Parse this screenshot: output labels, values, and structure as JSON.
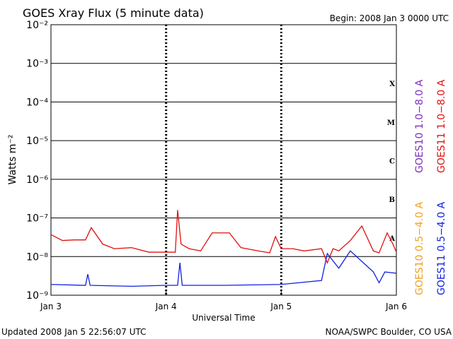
{
  "chart_data": {
    "type": "line",
    "title": "GOES Xray Flux (5 minute data)",
    "subtitle": "Begin:  2008 Jan 3 0000 UTC",
    "y_label": "Watts m⁻²",
    "x_label": "Universal Time",
    "footer_left": "Updated 2008 Jan  5 22:56:07 UTC",
    "footer_right": "NOAA/SWPC Boulder, CO USA",
    "log_y": true,
    "grid": true,
    "ylim": [
      1e-09,
      0.01
    ],
    "yticks": [
      {
        "value": 1e-09,
        "label": "10⁻⁹"
      },
      {
        "value": 1e-08,
        "label": "10⁻⁸"
      },
      {
        "value": 1e-07,
        "label": "10⁻⁷"
      },
      {
        "value": 1e-06,
        "label": "10⁻⁶"
      },
      {
        "value": 1e-05,
        "label": "10⁻⁵"
      },
      {
        "value": 0.0001,
        "label": "10⁻⁴"
      },
      {
        "value": 0.001,
        "label": "10⁻³"
      },
      {
        "value": 0.01,
        "label": "10⁻²"
      }
    ],
    "xlim": [
      0,
      3
    ],
    "xticks": [
      {
        "value": 0,
        "label": "Jan 3"
      },
      {
        "value": 1,
        "label": "Jan 4"
      },
      {
        "value": 2,
        "label": "Jan 5"
      },
      {
        "value": 3,
        "label": "Jan 6"
      }
    ],
    "class_labels": [
      "A",
      "B",
      "C",
      "M",
      "X"
    ],
    "series": [
      {
        "name": "GOES10 1.0−8.0 A",
        "color": "#7b2fbf"
      },
      {
        "name": "GOES11 1.0−8.0 A",
        "color": "#e01010",
        "x": [
          0,
          0.1,
          0.2,
          0.3,
          0.35,
          0.45,
          0.55,
          0.7,
          0.85,
          1.0,
          1.08,
          1.1,
          1.13,
          1.2,
          1.3,
          1.4,
          1.55,
          1.65,
          1.8,
          1.9,
          1.95,
          2.0,
          2.1,
          2.2,
          2.35,
          2.4,
          2.45,
          2.5,
          2.6,
          2.7,
          2.8,
          2.85,
          2.92,
          2.97,
          3.0
        ],
        "values": [
          3.7e-08,
          2.6e-08,
          2.7e-08,
          2.7e-08,
          5.6e-08,
          2.1e-08,
          1.6e-08,
          1.7e-08,
          1.3e-08,
          1.3e-08,
          1.3e-08,
          1.6e-07,
          2.1e-08,
          1.6e-08,
          1.4e-08,
          4.1e-08,
          4.1e-08,
          1.7e-08,
          1.4e-08,
          1.25e-08,
          3.3e-08,
          1.6e-08,
          1.6e-08,
          1.4e-08,
          1.6e-08,
          6.9e-09,
          1.6e-08,
          1.4e-08,
          2.6e-08,
          6.2e-08,
          1.4e-08,
          1.25e-08,
          4.1e-08,
          2.1e-08,
          1.3e-08
        ]
      },
      {
        "name": "GOES10 0.5−4.0 A",
        "color": "#f0a020"
      },
      {
        "name": "GOES11 0.5−4.0 A",
        "color": "#1020e0",
        "x": [
          0,
          0.3,
          0.32,
          0.34,
          0.7,
          1.0,
          1.1,
          1.12,
          1.14,
          1.5,
          2.0,
          2.35,
          2.4,
          2.5,
          2.6,
          2.7,
          2.8,
          2.85,
          2.9,
          3.0
        ],
        "values": [
          1.9e-09,
          1.8e-09,
          3.5e-09,
          1.8e-09,
          1.7e-09,
          1.8e-09,
          1.8e-09,
          6.9e-09,
          1.8e-09,
          1.8e-09,
          1.9e-09,
          2.4e-09,
          1.2e-08,
          5e-09,
          1.4e-08,
          7.5e-09,
          4e-09,
          2.1e-09,
          4e-09,
          3.7e-09
        ]
      }
    ]
  }
}
